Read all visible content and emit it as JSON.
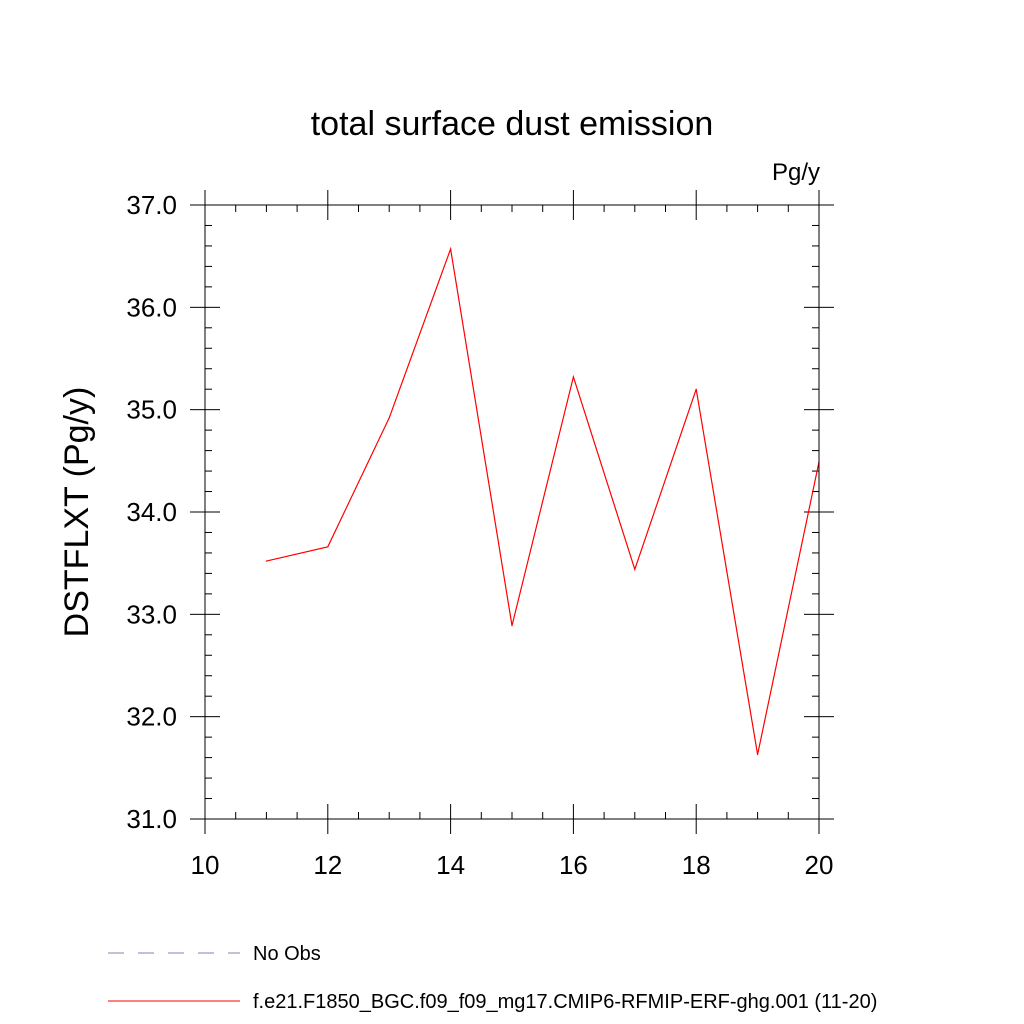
{
  "chart_data": {
    "type": "line",
    "title": "total surface dust emission",
    "units_label": "Pg/y",
    "ylabel": "DSTFLXT  (Pg/y)",
    "xlabel": "",
    "xlim": [
      10,
      20
    ],
    "ylim": [
      31.0,
      37.0
    ],
    "x_ticks": [
      10,
      12,
      14,
      16,
      18,
      20
    ],
    "x_tick_labels": [
      "10",
      "12",
      "14",
      "16",
      "18",
      "20"
    ],
    "y_ticks": [
      31.0,
      32.0,
      33.0,
      34.0,
      35.0,
      36.0,
      37.0
    ],
    "y_tick_labels": [
      "31.0",
      "32.0",
      "33.0",
      "34.0",
      "35.0",
      "36.0",
      "37.0"
    ],
    "grid": false,
    "legend_position": "bottom-left",
    "series": [
      {
        "name": "f.e21.F1850_BGC.f09_f09_mg17.CMIP6-RFMIP-ERF-ghg.001 (11-20)",
        "color": "#ff0000",
        "dash": "solid",
        "x": [
          11,
          12,
          13,
          14,
          15,
          16,
          17,
          18,
          19,
          20
        ],
        "y": [
          33.52,
          33.66,
          34.92,
          36.57,
          32.89,
          35.32,
          33.44,
          35.2,
          31.63,
          34.49
        ]
      }
    ],
    "legend": [
      {
        "label": "No Obs",
        "color": "#8a7fb5",
        "dash": "dashed"
      },
      {
        "label": "f.e21.F1850_BGC.f09_f09_mg17.CMIP6-RFMIP-ERF-ghg.001 (11-20)",
        "color": "#ff0000",
        "dash": "solid"
      }
    ]
  }
}
